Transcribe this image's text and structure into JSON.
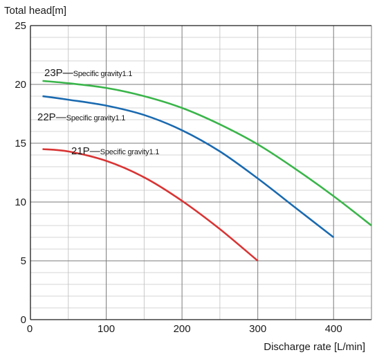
{
  "chart_data": {
    "type": "line",
    "ylabel": "Total head[m]",
    "xlabel": "Discharge rate [L/min]",
    "xlim": [
      0,
      450
    ],
    "ylim": [
      0,
      25
    ],
    "x_ticks": [
      0,
      100,
      200,
      300,
      400
    ],
    "y_ticks": [
      0,
      5,
      10,
      15,
      20,
      25
    ],
    "x_minor_step": 50,
    "y_minor_step": 1,
    "grid": true,
    "series": [
      {
        "name": "23P",
        "annotation": "Specific gravity1.1",
        "color": "#3ab54a",
        "x": [
          16,
          50,
          100,
          150,
          200,
          250,
          300,
          350,
          400,
          450
        ],
        "y": [
          20.3,
          20.1,
          19.7,
          19.0,
          18.0,
          16.6,
          14.9,
          12.8,
          10.5,
          8.0
        ]
      },
      {
        "name": "22P",
        "annotation": "Specific gravity1.1",
        "color": "#1a6ab0",
        "x": [
          16,
          50,
          100,
          150,
          200,
          250,
          300,
          350,
          400
        ],
        "y": [
          19.0,
          18.7,
          18.2,
          17.4,
          16.1,
          14.3,
          12.0,
          9.5,
          7.0
        ]
      },
      {
        "name": "21P",
        "annotation": "Specific gravity1.1",
        "color": "#d93434",
        "x": [
          16,
          50,
          100,
          150,
          200,
          250,
          300
        ],
        "y": [
          14.5,
          14.3,
          13.5,
          12.1,
          10.1,
          7.7,
          5.0
        ]
      }
    ]
  }
}
